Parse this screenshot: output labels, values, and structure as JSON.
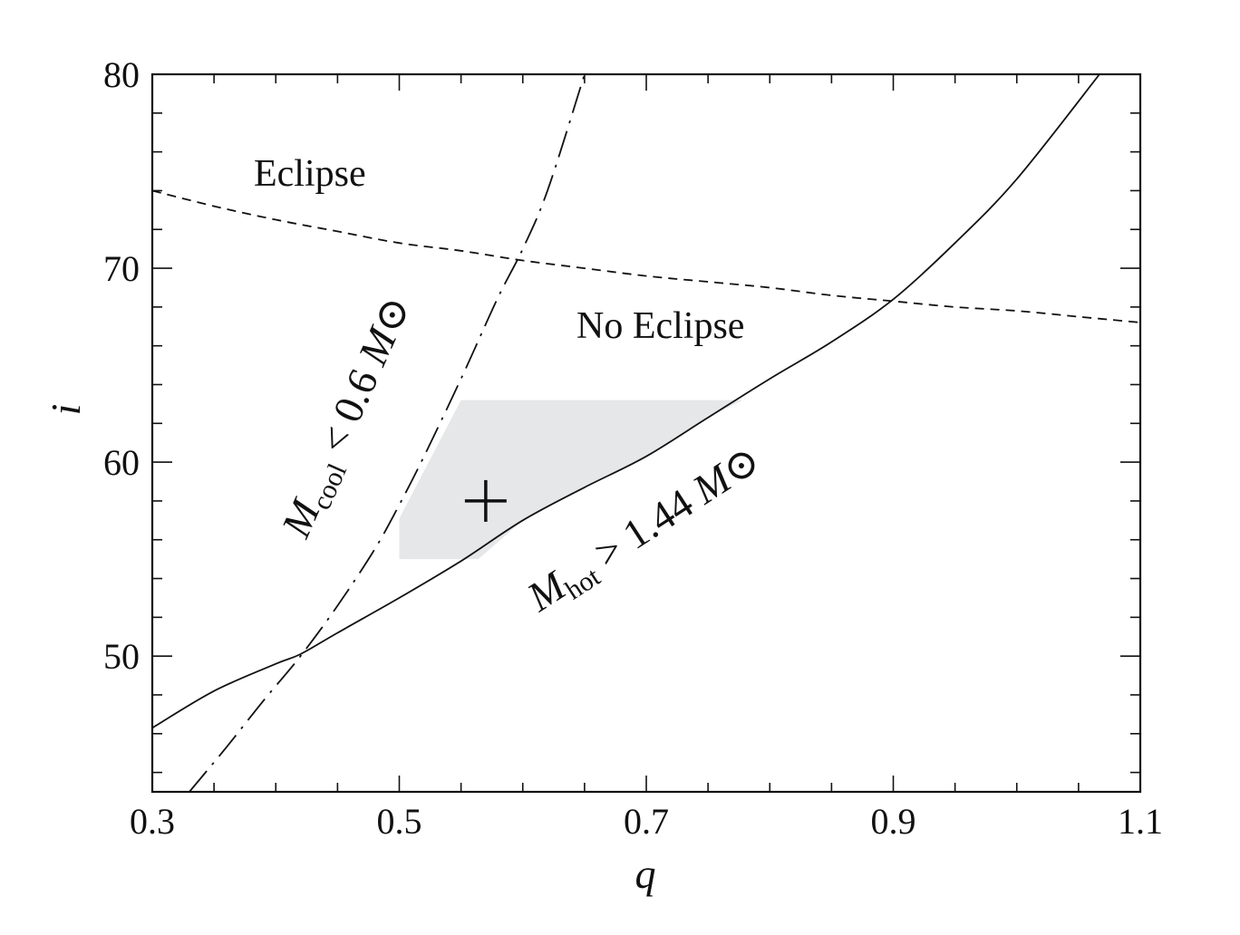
{
  "chart_data": {
    "type": "line",
    "xlabel": "q",
    "ylabel": "i",
    "xlim": [
      0.3,
      1.1
    ],
    "ylim": [
      43,
      80
    ],
    "x_ticks": [
      {
        "value": 0.3,
        "label": "0.3"
      },
      {
        "value": 0.5,
        "label": "0.5"
      },
      {
        "value": 0.7,
        "label": "0.7"
      },
      {
        "value": 0.9,
        "label": "0.9"
      },
      {
        "value": 1.1,
        "label": "1.1"
      }
    ],
    "y_ticks": [
      {
        "value": 50,
        "label": "50"
      },
      {
        "value": 60,
        "label": "60"
      },
      {
        "value": 70,
        "label": "70"
      },
      {
        "value": 80,
        "label": "80"
      }
    ],
    "x_minor_step": 0.05,
    "y_minor_step": 2,
    "series": [
      {
        "key": "eclipse_boundary",
        "style": "dashed",
        "color": "#111111",
        "x": [
          0.3,
          0.35,
          0.4,
          0.45,
          0.5,
          0.55,
          0.6,
          0.65,
          0.7,
          0.75,
          0.8,
          0.85,
          0.9,
          0.95,
          1.0,
          1.05,
          1.1
        ],
        "y": [
          74.0,
          73.2,
          72.5,
          71.9,
          71.3,
          70.9,
          70.4,
          70.0,
          69.6,
          69.3,
          69.0,
          68.6,
          68.3,
          68.0,
          67.8,
          67.5,
          67.2
        ]
      },
      {
        "key": "m_cool_limit",
        "style": "dash-dot",
        "color": "#111111",
        "x": [
          0.33,
          0.36,
          0.39,
          0.42,
          0.45,
          0.48,
          0.5,
          0.52,
          0.55,
          0.58,
          0.6,
          0.62,
          0.65
        ],
        "y": [
          43.0,
          45.3,
          47.7,
          50.0,
          52.6,
          55.5,
          57.8,
          60.3,
          64.3,
          68.5,
          71.0,
          74.0,
          80.0
        ]
      },
      {
        "key": "m_hot_limit",
        "style": "solid",
        "color": "#111111",
        "x": [
          0.3,
          0.35,
          0.4,
          0.42,
          0.45,
          0.5,
          0.55,
          0.6,
          0.65,
          0.7,
          0.75,
          0.8,
          0.85,
          0.9,
          0.95,
          1.0,
          1.067
        ],
        "y": [
          46.3,
          48.2,
          49.6,
          50.1,
          51.2,
          53.0,
          54.9,
          57.0,
          58.7,
          60.3,
          62.3,
          64.3,
          66.2,
          68.4,
          71.3,
          74.6,
          80.0
        ]
      }
    ],
    "shaded_region": {
      "color": "#e6e7e8",
      "points": [
        [
          0.5,
          55.0
        ],
        [
          0.5,
          57.1
        ],
        [
          0.55,
          63.2
        ],
        [
          0.778,
          63.2
        ],
        [
          0.75,
          62.3
        ],
        [
          0.7,
          60.3
        ],
        [
          0.65,
          58.7
        ],
        [
          0.6,
          57.0
        ],
        [
          0.564,
          55.0
        ]
      ]
    },
    "marker": {
      "symbol": "+",
      "q": 0.57,
      "i": 58.0
    },
    "annotations": {
      "eclipse": "Eclipse",
      "no_eclipse": "No Eclipse",
      "m_cool": {
        "symbol": "M",
        "subscript": "cool",
        "relation": " < 0.6 ",
        "unit": "M⊙"
      },
      "m_hot": {
        "symbol": "M",
        "subscript": "hot",
        "relation": " > 1.44 ",
        "unit": "M⊙"
      }
    },
    "grid": false,
    "legend": "none"
  }
}
